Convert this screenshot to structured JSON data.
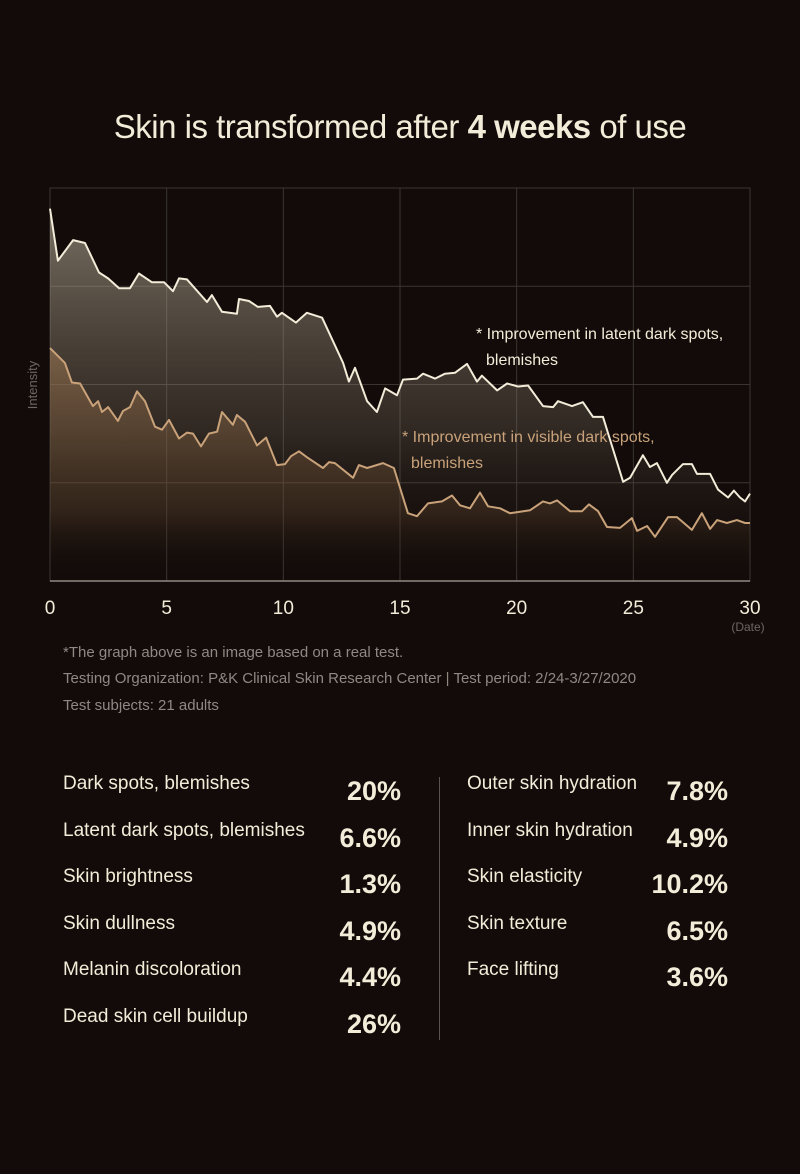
{
  "title": {
    "prefix": "Skin is transformed after ",
    "emphasis": "4 weeks",
    "suffix": " of use"
  },
  "colors": {
    "background": "#120b09",
    "latent_line": "#f3ecd9",
    "visible_line": "#c9a27a",
    "text": "#f3ecd9",
    "muted": "#8f8984"
  },
  "chart_data": {
    "type": "area",
    "title": "",
    "xlabel": "(Date)",
    "ylabel": "Intensity",
    "xlim": [
      0,
      30
    ],
    "ylim": [
      0,
      4
    ],
    "x_ticks": [
      "0",
      "5",
      "10",
      "15",
      "20",
      "25",
      "30"
    ],
    "y_ticks_labeled": false,
    "grid": true,
    "series": [
      {
        "name": "* Improvement in latent dark spots, blemishes",
        "label_lines": [
          "* Improvement in latent dark spots,",
          "blemishes"
        ],
        "color": "#f3ecd9",
        "points": [
          [
            0,
            3.79
          ],
          [
            0.34,
            3.26
          ],
          [
            0.99,
            3.47
          ],
          [
            1.5,
            3.44
          ],
          [
            2.1,
            3.14
          ],
          [
            2.49,
            3.08
          ],
          [
            2.96,
            2.98
          ],
          [
            3.43,
            2.98
          ],
          [
            3.81,
            3.13
          ],
          [
            4.37,
            3.04
          ],
          [
            4.89,
            3.04
          ],
          [
            5.27,
            2.95
          ],
          [
            5.53,
            3.08
          ],
          [
            5.87,
            3.07
          ],
          [
            6.73,
            2.84
          ],
          [
            6.94,
            2.91
          ],
          [
            7.37,
            2.74
          ],
          [
            8.01,
            2.72
          ],
          [
            8.1,
            2.87
          ],
          [
            8.53,
            2.85
          ],
          [
            8.91,
            2.79
          ],
          [
            9.43,
            2.8
          ],
          [
            9.73,
            2.69
          ],
          [
            9.94,
            2.73
          ],
          [
            10.54,
            2.63
          ],
          [
            11.01,
            2.73
          ],
          [
            11.66,
            2.68
          ],
          [
            12.56,
            2.22
          ],
          [
            12.81,
            2.03
          ],
          [
            13.07,
            2.17
          ],
          [
            13.59,
            1.83
          ],
          [
            14.01,
            1.72
          ],
          [
            14.36,
            1.96
          ],
          [
            14.87,
            1.89
          ],
          [
            15.13,
            2.05
          ],
          [
            15.73,
            2.06
          ],
          [
            15.99,
            2.11
          ],
          [
            16.5,
            2.06
          ],
          [
            16.93,
            2.11
          ],
          [
            17.36,
            2.12
          ],
          [
            17.87,
            2.21
          ],
          [
            18.3,
            2.03
          ],
          [
            18.51,
            2.09
          ],
          [
            19.16,
            1.94
          ],
          [
            19.59,
            2.01
          ],
          [
            20.06,
            1.98
          ],
          [
            20.49,
            1.99
          ],
          [
            21.13,
            1.78
          ],
          [
            21.56,
            1.77
          ],
          [
            21.77,
            1.83
          ],
          [
            22.37,
            1.78
          ],
          [
            22.84,
            1.82
          ],
          [
            23.27,
            1.67
          ],
          [
            23.7,
            1.67
          ],
          [
            24.56,
            1.01
          ],
          [
            24.86,
            1.05
          ],
          [
            25.41,
            1.28
          ],
          [
            25.71,
            1.16
          ],
          [
            26.01,
            1.2
          ],
          [
            26.44,
            1.0
          ],
          [
            26.66,
            1.08
          ],
          [
            27.13,
            1.19
          ],
          [
            27.51,
            1.19
          ],
          [
            27.73,
            1.09
          ],
          [
            28.29,
            1.09
          ],
          [
            28.63,
            0.93
          ],
          [
            29.06,
            0.85
          ],
          [
            29.31,
            0.92
          ],
          [
            29.57,
            0.85
          ],
          [
            29.79,
            0.81
          ],
          [
            30,
            0.89
          ]
        ]
      },
      {
        "name": "* Improvement in visible dark spots, blemishes",
        "label_lines": [
          "* Improvement in visible dark spots,",
          "blemishes"
        ],
        "color": "#c9a27a",
        "points": [
          [
            0,
            2.37
          ],
          [
            0.64,
            2.22
          ],
          [
            0.94,
            2.02
          ],
          [
            1.29,
            2.01
          ],
          [
            1.84,
            1.78
          ],
          [
            2.06,
            1.83
          ],
          [
            2.23,
            1.72
          ],
          [
            2.49,
            1.77
          ],
          [
            2.91,
            1.63
          ],
          [
            3.13,
            1.73
          ],
          [
            3.43,
            1.77
          ],
          [
            3.73,
            1.93
          ],
          [
            4.07,
            1.83
          ],
          [
            4.5,
            1.57
          ],
          [
            4.8,
            1.54
          ],
          [
            5.1,
            1.64
          ],
          [
            5.53,
            1.45
          ],
          [
            5.87,
            1.51
          ],
          [
            6.13,
            1.5
          ],
          [
            6.47,
            1.37
          ],
          [
            6.81,
            1.5
          ],
          [
            7.16,
            1.52
          ],
          [
            7.37,
            1.72
          ],
          [
            7.84,
            1.59
          ],
          [
            8.01,
            1.69
          ],
          [
            8.36,
            1.62
          ],
          [
            8.87,
            1.38
          ],
          [
            9.26,
            1.46
          ],
          [
            9.73,
            1.18
          ],
          [
            10.07,
            1.19
          ],
          [
            10.33,
            1.27
          ],
          [
            10.67,
            1.32
          ],
          [
            11.01,
            1.26
          ],
          [
            11.7,
            1.15
          ],
          [
            11.96,
            1.21
          ],
          [
            12.21,
            1.2
          ],
          [
            12.99,
            1.05
          ],
          [
            13.24,
            1.18
          ],
          [
            13.59,
            1.15
          ],
          [
            14.27,
            1.2
          ],
          [
            14.74,
            1.15
          ],
          [
            15.34,
            0.69
          ],
          [
            15.73,
            0.66
          ],
          [
            16.2,
            0.79
          ],
          [
            16.8,
            0.81
          ],
          [
            17.23,
            0.87
          ],
          [
            17.57,
            0.77
          ],
          [
            18.0,
            0.74
          ],
          [
            18.43,
            0.9
          ],
          [
            18.77,
            0.76
          ],
          [
            19.29,
            0.74
          ],
          [
            19.71,
            0.69
          ],
          [
            20.57,
            0.72
          ],
          [
            21.13,
            0.81
          ],
          [
            21.43,
            0.79
          ],
          [
            21.73,
            0.82
          ],
          [
            22.29,
            0.71
          ],
          [
            22.8,
            0.71
          ],
          [
            23.1,
            0.78
          ],
          [
            23.49,
            0.71
          ],
          [
            23.87,
            0.55
          ],
          [
            24.43,
            0.54
          ],
          [
            24.94,
            0.64
          ],
          [
            25.16,
            0.51
          ],
          [
            25.59,
            0.56
          ],
          [
            25.93,
            0.45
          ],
          [
            26.49,
            0.65
          ],
          [
            26.87,
            0.65
          ],
          [
            27.51,
            0.52
          ],
          [
            27.94,
            0.69
          ],
          [
            28.29,
            0.53
          ],
          [
            28.59,
            0.62
          ],
          [
            29.01,
            0.59
          ],
          [
            29.44,
            0.62
          ],
          [
            29.79,
            0.59
          ],
          [
            30,
            0.59
          ]
        ]
      }
    ]
  },
  "footnotes": [
    "*The graph above is an image based on a real test.",
    "Testing Organization: P&K Clinical Skin Research Center | Test period: 2/24-3/27/2020",
    "Test subjects: 21 adults"
  ],
  "stats_left": [
    {
      "label": "Dark spots, blemishes",
      "value": "20%"
    },
    {
      "label": "Latent dark spots, blemishes",
      "value": "6.6%"
    },
    {
      "label": "Skin brightness",
      "value": "1.3%"
    },
    {
      "label": "Skin dullness",
      "value": "4.9%"
    },
    {
      "label": "Melanin discoloration",
      "value": "4.4%"
    },
    {
      "label": "Dead skin cell buildup",
      "value": "26%"
    }
  ],
  "stats_right": [
    {
      "label": "Outer skin hydration",
      "value": "7.8%"
    },
    {
      "label": "Inner skin hydration",
      "value": "4.9%"
    },
    {
      "label": "Skin elasticity",
      "value": "10.2%"
    },
    {
      "label": "Skin texture",
      "value": "6.5%"
    },
    {
      "label": "Face lifting",
      "value": "3.6%"
    }
  ]
}
